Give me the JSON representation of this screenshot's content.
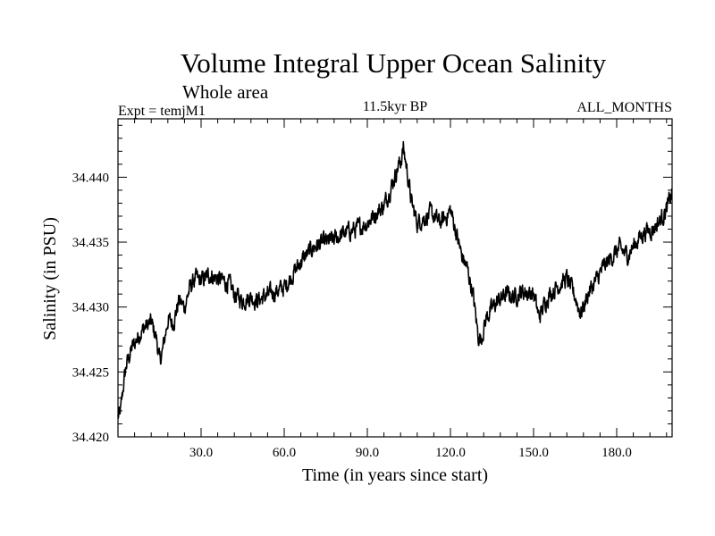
{
  "chart_data": {
    "type": "line",
    "title": "Volume Integral Upper Ocean Salinity",
    "subtitle": "Whole area",
    "left_label": "Expt = temjM1",
    "center_label": "11.5kyr BP",
    "right_label": "ALL_MONTHS",
    "xlabel": "Time (in years since start)",
    "ylabel": "Salinity (in PSU)",
    "xlim": [
      0,
      200
    ],
    "ylim": [
      34.42,
      34.4445
    ],
    "xticks": [
      30,
      60,
      90,
      120,
      150,
      180
    ],
    "xtick_labels": [
      "30.0",
      "60.0",
      "90.0",
      "120.0",
      "150.0",
      "180.0"
    ],
    "yticks": [
      34.42,
      34.425,
      34.43,
      34.435,
      34.44
    ],
    "ytick_labels": [
      "34.420",
      "34.425",
      "34.430",
      "34.435",
      "34.440"
    ],
    "grid": false,
    "series": [
      {
        "name": "Salinity",
        "color": "#000000",
        "noise": 0.00055,
        "x": [
          0,
          1,
          2,
          3,
          5,
          8,
          10,
          12,
          14,
          15,
          16,
          18,
          20,
          22,
          24,
          26,
          28,
          30,
          33,
          36,
          40,
          42,
          45,
          48,
          50,
          55,
          60,
          63,
          66,
          70,
          72,
          75,
          78,
          80,
          83,
          86,
          90,
          93,
          96,
          99,
          101,
          102,
          103,
          104,
          105,
          106,
          108,
          110,
          113,
          116,
          118,
          120,
          122,
          124,
          126,
          128,
          129,
          130,
          131,
          133,
          136,
          140,
          143,
          146,
          150,
          152,
          155,
          158,
          162,
          165,
          167,
          168,
          170,
          172,
          175,
          178,
          181,
          184,
          187,
          190,
          193,
          196,
          198,
          200
        ],
        "y": [
          34.4215,
          34.422,
          34.424,
          34.4255,
          34.4268,
          34.428,
          34.4285,
          34.4288,
          34.4275,
          34.4258,
          34.4265,
          34.429,
          34.4288,
          34.4305,
          34.43,
          34.4315,
          34.4322,
          34.432,
          34.4325,
          34.4322,
          34.4318,
          34.431,
          34.4305,
          34.4308,
          34.4305,
          34.431,
          34.4315,
          34.4325,
          34.4335,
          34.4345,
          34.4348,
          34.435,
          34.4352,
          34.4355,
          34.4358,
          34.436,
          34.4365,
          34.4372,
          34.4378,
          34.4395,
          34.4408,
          34.4412,
          34.4422,
          34.441,
          34.4395,
          34.438,
          34.4365,
          34.4368,
          34.4372,
          34.4365,
          34.4368,
          34.4375,
          34.4358,
          34.434,
          34.433,
          34.4312,
          34.4295,
          34.4278,
          34.4275,
          34.4292,
          34.4302,
          34.431,
          34.4308,
          34.4312,
          34.431,
          34.4292,
          34.4308,
          34.4315,
          34.4322,
          34.4308,
          34.4295,
          34.43,
          34.4312,
          34.4318,
          34.433,
          34.4338,
          34.4345,
          34.434,
          34.435,
          34.4358,
          34.436,
          34.4368,
          34.4375,
          34.4388
        ]
      }
    ]
  }
}
